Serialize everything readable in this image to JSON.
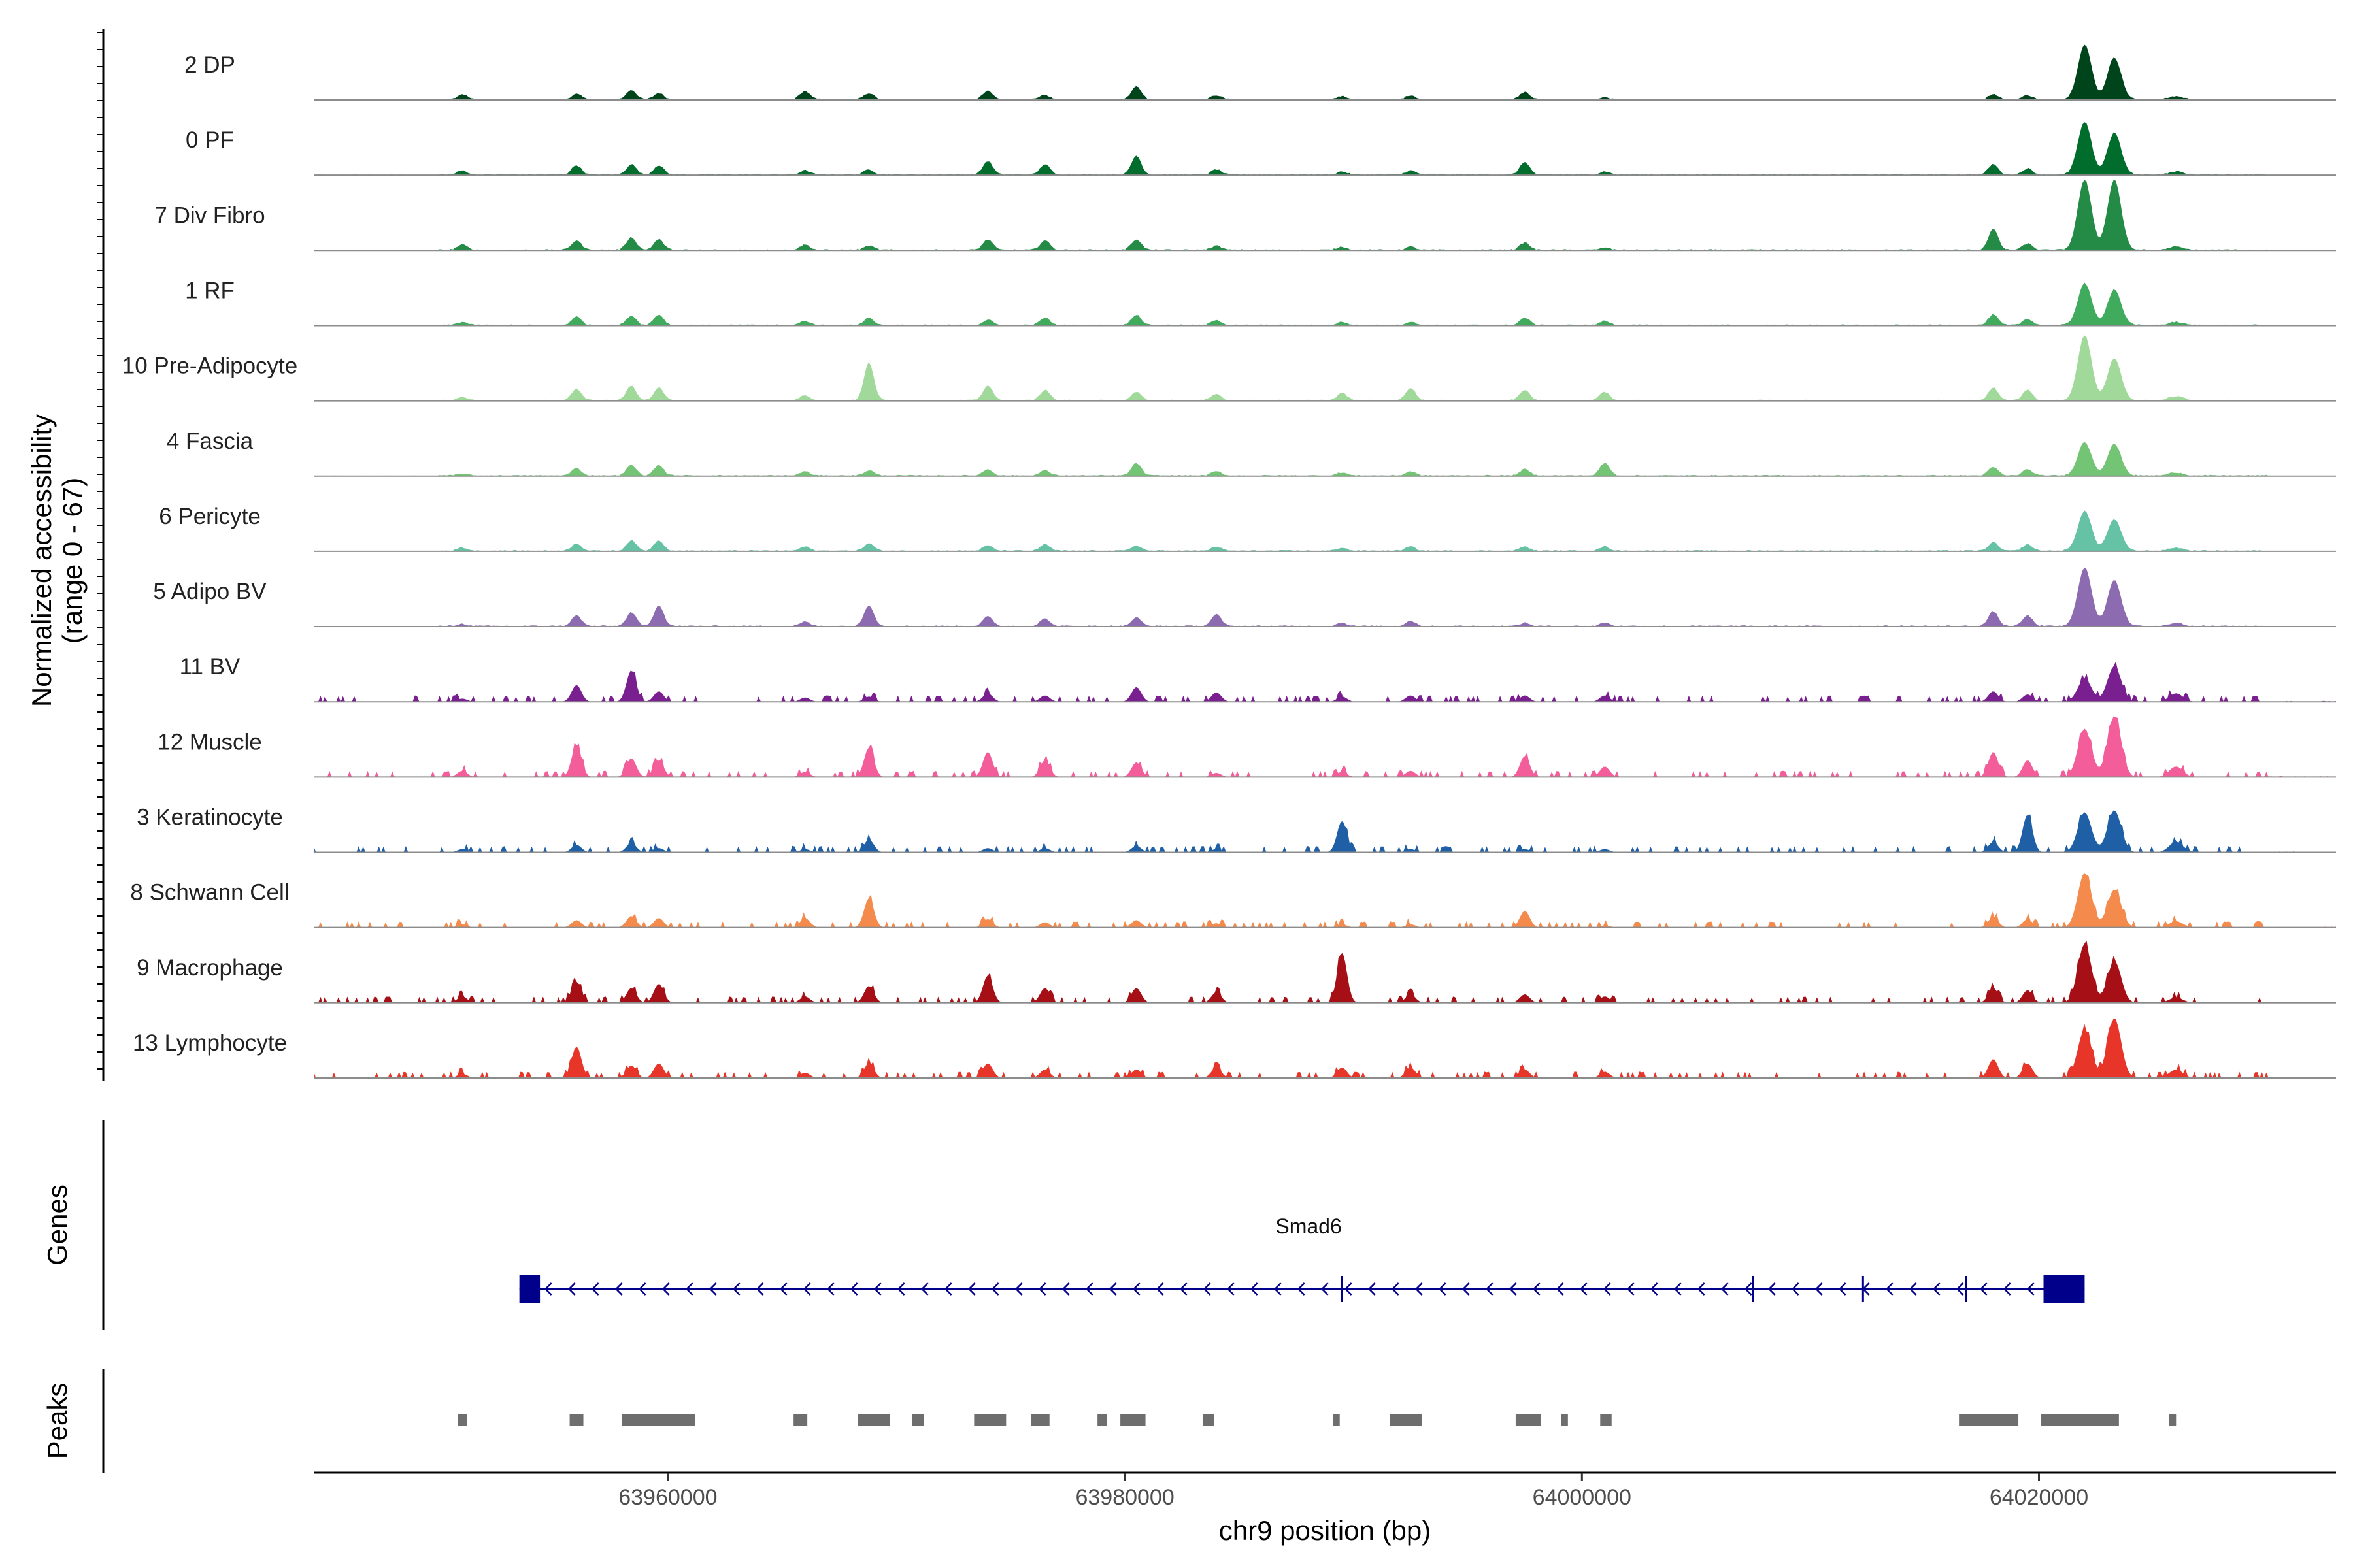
{
  "chart_data": {
    "type": "area",
    "title": "",
    "coverage_ylabel_line1": "Normalized accessibility",
    "coverage_ylabel_line2": "(range 0 - 67)",
    "genes_label": "Genes",
    "peaks_label": "Peaks",
    "xlabel": "chr9 position (bp)",
    "xlim": [
      63944500,
      64033000
    ],
    "ylim": [
      0,
      67
    ],
    "x_ticks": [
      63960000,
      63980000,
      64000000,
      64020000
    ],
    "x_tick_labels": [
      "63960000",
      "63980000",
      "64000000",
      "64020000"
    ],
    "tracks": [
      {
        "name": "2 DP",
        "color": "#00441b"
      },
      {
        "name": "0 PF",
        "color": "#006d2c"
      },
      {
        "name": "7 Div Fibro",
        "color": "#238b45"
      },
      {
        "name": "1 RF",
        "color": "#41ab5d"
      },
      {
        "name": "10 Pre-Adipocyte",
        "color": "#a1d99b"
      },
      {
        "name": "4 Fascia",
        "color": "#74c476"
      },
      {
        "name": "6 Pericyte",
        "color": "#66c2a4"
      },
      {
        "name": "5 Adipo BV",
        "color": "#8c6bb1"
      },
      {
        "name": "11 BV",
        "color": "#7a1f8f"
      },
      {
        "name": "12 Muscle",
        "color": "#f25d9a"
      },
      {
        "name": "3 Keratinocyte",
        "color": "#1f5fa6"
      },
      {
        "name": "8 Schwann Cell",
        "color": "#f48a4c"
      },
      {
        "name": "9 Macrophage",
        "color": "#a50f15"
      },
      {
        "name": "13 Lymphocyte",
        "color": "#e8352a"
      }
    ],
    "peak_positions_bp": [
      63951000,
      63956000,
      63958400,
      63959600,
      63966000,
      63968800,
      63974000,
      63976500,
      63980500,
      63984000,
      63989500,
      63992500,
      63997500,
      64001000,
      64018000,
      64019500,
      64022000,
      64023300,
      64026000
    ],
    "peak_heights": [
      [
        5,
        5,
        9,
        6,
        8,
        6,
        8,
        4,
        13,
        4,
        3,
        4,
        7,
        2,
        5,
        4,
        52,
        40,
        3
      ],
      [
        4,
        9,
        10,
        9,
        4,
        5,
        13,
        10,
        18,
        5,
        3,
        4,
        12,
        3,
        10,
        6,
        50,
        40,
        3
      ],
      [
        5,
        9,
        12,
        10,
        5,
        4,
        10,
        9,
        10,
        4,
        3,
        3,
        7,
        2,
        20,
        6,
        67,
        67,
        3
      ],
      [
        3,
        8,
        9,
        10,
        4,
        7,
        5,
        7,
        10,
        5,
        3,
        3,
        7,
        4,
        10,
        6,
        40,
        34,
        3
      ],
      [
        3,
        11,
        14,
        12,
        5,
        36,
        14,
        10,
        8,
        6,
        7,
        12,
        10,
        8,
        12,
        10,
        62,
        40,
        4
      ],
      [
        2,
        7,
        10,
        10,
        4,
        5,
        6,
        5,
        12,
        4,
        3,
        4,
        6,
        12,
        8,
        6,
        32,
        30,
        3
      ],
      [
        3,
        7,
        10,
        10,
        4,
        7,
        5,
        6,
        5,
        4,
        3,
        4,
        4,
        4,
        8,
        6,
        38,
        30,
        3
      ],
      [
        2,
        10,
        13,
        20,
        4,
        20,
        9,
        7,
        8,
        11,
        3,
        5,
        3,
        3,
        14,
        10,
        56,
        44,
        3
      ],
      [
        3,
        16,
        30,
        10,
        4,
        5,
        8,
        6,
        14,
        9,
        5,
        6,
        6,
        6,
        10,
        7,
        22,
        34,
        8
      ],
      [
        6,
        30,
        18,
        16,
        5,
        28,
        24,
        16,
        14,
        4,
        5,
        6,
        20,
        10,
        24,
        16,
        46,
        58,
        10
      ],
      [
        3,
        7,
        9,
        4,
        3,
        12,
        4,
        4,
        6,
        3,
        30,
        3,
        3,
        3,
        10,
        36,
        38,
        40,
        10
      ],
      [
        3,
        7,
        11,
        9,
        9,
        28,
        8,
        5,
        7,
        4,
        3,
        3,
        16,
        2,
        10,
        8,
        52,
        36,
        6
      ],
      [
        6,
        20,
        14,
        18,
        6,
        16,
        26,
        14,
        14,
        10,
        48,
        8,
        8,
        6,
        14,
        12,
        56,
        40,
        5
      ],
      [
        4,
        30,
        12,
        14,
        5,
        14,
        14,
        8,
        8,
        10,
        10,
        10,
        8,
        6,
        18,
        14,
        46,
        57,
        8
      ]
    ],
    "gene": {
      "name": "Smad6",
      "start": 63953500,
      "end": 64022000,
      "strand": "-",
      "color": "#00008b",
      "exons": [
        [
          63953500,
          63954400
        ],
        [
          64020200,
          64022000
        ]
      ],
      "internal_exons": [
        63989500,
        64007500,
        64012300,
        64016800
      ]
    },
    "peaks": [
      [
        63950800,
        63951200
      ],
      [
        63955700,
        63956300
      ],
      [
        63958000,
        63961200
      ],
      [
        63965500,
        63966100
      ],
      [
        63968300,
        63969700
      ],
      [
        63970700,
        63971200
      ],
      [
        63973400,
        63974800
      ],
      [
        63975900,
        63976700
      ],
      [
        63978800,
        63979200
      ],
      [
        63979800,
        63980900
      ],
      [
        63983400,
        63983900
      ],
      [
        63989100,
        63989400
      ],
      [
        63991600,
        63993000
      ],
      [
        63997100,
        63998200
      ],
      [
        63999100,
        63999300
      ],
      [
        64000800,
        64001300
      ],
      [
        64016500,
        64019100
      ],
      [
        64020100,
        64023500
      ],
      [
        64025700,
        64026000
      ]
    ]
  }
}
